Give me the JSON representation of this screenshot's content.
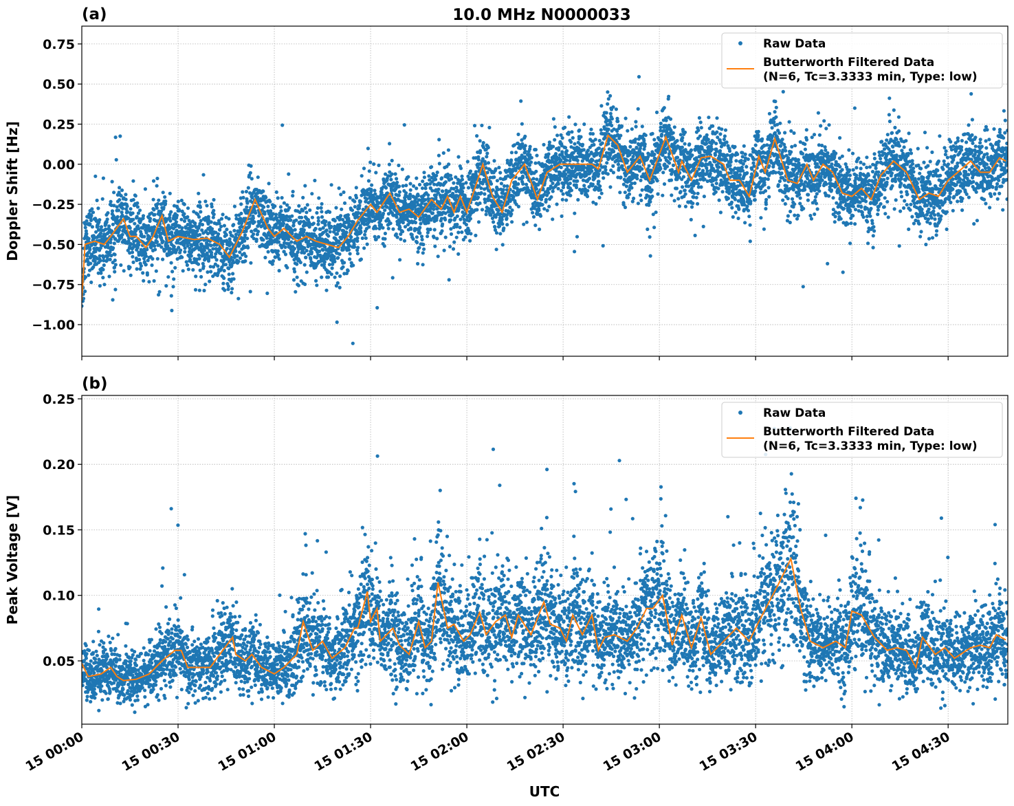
{
  "figure": {
    "title": "10.0 MHz N0000033",
    "date_day": "15"
  },
  "colors": {
    "raw": "#1f77b4",
    "filtered": "#ff7f0e"
  },
  "chart_data": [
    {
      "type": "scatter+line",
      "panel_label": "(a)",
      "title": "10.0 MHz N0000033",
      "xlabel": "",
      "ylabel": "Doppler Shift [Hz]",
      "xlim": [
        "00:00",
        "04:48:36"
      ],
      "ylim": [
        -1.197,
        0.861
      ],
      "yticks": [
        "0.75",
        "0.50",
        "0.25",
        "0.00",
        "−0.25",
        "−0.50",
        "−0.75",
        "−1.00"
      ],
      "ytick_values": [
        0.75,
        0.5,
        0.25,
        0,
        -0.25,
        -0.5,
        -0.75,
        -1.0
      ],
      "grid": true,
      "legend": {
        "position": "top-right",
        "entries": [
          "Raw Data",
          "Butterworth Filtered Data",
          "(N=6, Tc=3.3333 min, Type: low)"
        ]
      },
      "series": [
        {
          "name": "Butterworth Filtered Data (N=6, Tc=3.3333 min, Type: low)",
          "kind": "line",
          "x": [
            "00:00",
            "00:01",
            "00:04",
            "00:07",
            "00:09",
            "00:13",
            "00:15",
            "00:17",
            "00:20",
            "00:22",
            "00:25",
            "00:27",
            "00:30",
            "00:35",
            "00:39",
            "00:43",
            "00:46",
            "00:50",
            "00:54",
            "00:58",
            "01:00",
            "01:03",
            "01:07",
            "01:10",
            "01:13",
            "01:20",
            "01:23",
            "01:26",
            "01:30",
            "01:32",
            "01:36",
            "01:39",
            "01:42",
            "01:45",
            "01:49",
            "01:52",
            "01:54",
            "01:56",
            "01:58",
            "02:00",
            "02:05",
            "02:08",
            "02:11",
            "02:14",
            "02:18",
            "02:22",
            "02:25",
            "02:29",
            "02:32",
            "02:39",
            "02:41",
            "02:44",
            "02:47",
            "02:50",
            "02:54",
            "02:57",
            "03:02",
            "03:06",
            "03:07",
            "03:10",
            "03:13",
            "03:16",
            "03:20",
            "03:22",
            "03:25",
            "03:28",
            "03:31",
            "03:33",
            "03:36",
            "03:40",
            "03:43",
            "03:46",
            "03:48",
            "03:51",
            "03:54",
            "03:57",
            "04:00",
            "04:03",
            "04:06",
            "04:09",
            "04:13",
            "04:17",
            "04:21",
            "04:24",
            "04:27",
            "04:30",
            "04:33",
            "04:37",
            "04:40",
            "04:43",
            "04:46",
            "04:48"
          ],
          "y": [
            -0.85,
            -0.5,
            -0.48,
            -0.5,
            -0.45,
            -0.34,
            -0.45,
            -0.45,
            -0.52,
            -0.46,
            -0.32,
            -0.48,
            -0.45,
            -0.47,
            -0.46,
            -0.5,
            -0.58,
            -0.42,
            -0.22,
            -0.4,
            -0.45,
            -0.4,
            -0.48,
            -0.45,
            -0.48,
            -0.52,
            -0.45,
            -0.35,
            -0.25,
            -0.3,
            -0.18,
            -0.3,
            -0.28,
            -0.33,
            -0.22,
            -0.28,
            -0.2,
            -0.3,
            -0.2,
            -0.3,
            0.0,
            -0.2,
            -0.3,
            -0.1,
            0.0,
            -0.22,
            -0.05,
            0.0,
            0.0,
            0.0,
            -0.03,
            0.18,
            0.12,
            -0.05,
            0.05,
            -0.1,
            0.17,
            -0.05,
            0.02,
            -0.1,
            0.04,
            0.05,
            0.0,
            -0.1,
            -0.1,
            -0.2,
            0.05,
            -0.05,
            0.16,
            -0.1,
            -0.12,
            0.0,
            -0.1,
            0.0,
            -0.05,
            -0.18,
            -0.2,
            -0.15,
            -0.22,
            -0.07,
            0.02,
            -0.05,
            -0.22,
            -0.18,
            -0.2,
            -0.1,
            -0.05,
            0.02,
            -0.05,
            -0.05,
            0.04,
            0.02
          ]
        },
        {
          "name": "Raw Data",
          "kind": "scatter",
          "note_points": "dense samples scattered about the filtered curve"
        }
      ]
    },
    {
      "type": "scatter+line",
      "panel_label": "(b)",
      "xlabel": "UTC",
      "ylabel": "Peak Voltage [V]",
      "xlim": [
        "00:00",
        "04:48:36"
      ],
      "ylim": [
        0.0017,
        0.2526
      ],
      "yticks": [
        "0.25",
        "0.20",
        "0.15",
        "0.10",
        "0.05"
      ],
      "ytick_values": [
        0.25,
        0.2,
        0.15,
        0.1,
        0.05
      ],
      "xticks": [
        "15 00:00",
        "15 00:30",
        "15 01:00",
        "15 01:30",
        "15 02:00",
        "15 02:30",
        "15 03:00",
        "15 03:30",
        "15 04:00",
        "15 04:30"
      ],
      "xtick_values": [
        "00:00",
        "00:30",
        "01:00",
        "01:30",
        "02:00",
        "02:30",
        "03:00",
        "03:30",
        "04:00",
        "04:30"
      ],
      "grid": true,
      "legend": {
        "position": "top-right",
        "entries": [
          "Raw Data",
          "Butterworth Filtered Data",
          "(N=6, Tc=3.3333 min, Type: low)"
        ]
      },
      "series": [
        {
          "name": "Butterworth Filtered Data (N=6, Tc=3.3333 min, Type: low)",
          "kind": "line",
          "x": [
            "00:00",
            "00:02",
            "00:06",
            "00:09",
            "00:11",
            "00:13",
            "00:17",
            "00:21",
            "00:25",
            "00:29",
            "00:31",
            "00:33",
            "00:37",
            "00:40",
            "00:43",
            "00:47",
            "00:48",
            "00:51",
            "00:53",
            "00:56",
            "01:00",
            "01:03",
            "01:07",
            "01:09",
            "01:12",
            "01:15",
            "01:18",
            "01:22",
            "01:25",
            "01:26",
            "01:29",
            "01:30",
            "01:32",
            "01:33",
            "01:37",
            "01:39",
            "01:42",
            "01:45",
            "01:47",
            "01:49",
            "01:51",
            "01:54",
            "01:56",
            "01:59",
            "02:01",
            "02:04",
            "02:06",
            "02:09",
            "02:12",
            "02:14",
            "02:16",
            "02:20",
            "02:24",
            "02:26",
            "02:29",
            "02:31",
            "02:33",
            "02:36",
            "02:39",
            "02:41",
            "02:43",
            "02:46",
            "02:50",
            "02:53",
            "02:56",
            "02:58",
            "03:01",
            "03:04",
            "03:07",
            "03:10",
            "03:13",
            "03:16",
            "03:20",
            "03:24",
            "03:28",
            "03:31",
            "03:37",
            "03:41",
            "03:44",
            "03:47",
            "03:51",
            "03:55",
            "03:58",
            "04:00",
            "04:03",
            "04:07",
            "04:11",
            "04:14",
            "04:17",
            "04:20",
            "04:22",
            "04:26",
            "04:29",
            "04:32",
            "04:37",
            "04:40",
            "04:43",
            "04:45",
            "04:48"
          ],
          "y": [
            0.048,
            0.038,
            0.04,
            0.045,
            0.038,
            0.035,
            0.036,
            0.04,
            0.05,
            0.058,
            0.058,
            0.045,
            0.045,
            0.045,
            0.055,
            0.068,
            0.055,
            0.05,
            0.055,
            0.045,
            0.04,
            0.045,
            0.055,
            0.08,
            0.058,
            0.065,
            0.052,
            0.06,
            0.075,
            0.075,
            0.103,
            0.08,
            0.09,
            0.065,
            0.075,
            0.062,
            0.055,
            0.08,
            0.06,
            0.065,
            0.11,
            0.075,
            0.078,
            0.065,
            0.07,
            0.087,
            0.07,
            0.08,
            0.085,
            0.068,
            0.085,
            0.07,
            0.095,
            0.078,
            0.075,
            0.065,
            0.085,
            0.07,
            0.085,
            0.058,
            0.068,
            0.07,
            0.065,
            0.075,
            0.09,
            0.09,
            0.1,
            0.062,
            0.085,
            0.06,
            0.083,
            0.055,
            0.065,
            0.075,
            0.065,
            0.08,
            0.108,
            0.128,
            0.09,
            0.065,
            0.06,
            0.065,
            0.06,
            0.088,
            0.085,
            0.068,
            0.058,
            0.06,
            0.058,
            0.045,
            0.068,
            0.055,
            0.06,
            0.052,
            0.06,
            0.062,
            0.06,
            0.07,
            0.066
          ]
        },
        {
          "name": "Raw Data",
          "kind": "scatter",
          "note_points": "dense samples scattered about the filtered curve"
        }
      ]
    }
  ]
}
